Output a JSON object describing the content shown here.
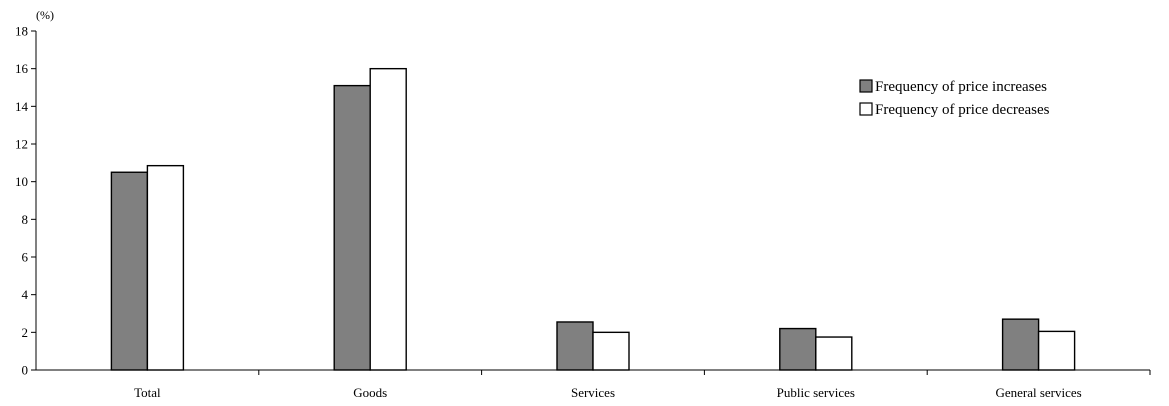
{
  "chart_data": {
    "type": "bar",
    "unit_label": "(%)",
    "categories": [
      "Total",
      "Goods",
      "Services",
      "Public services",
      "General services"
    ],
    "series": [
      {
        "name": "Frequency of price increases",
        "color": "#808080",
        "values": [
          10.5,
          15.1,
          2.55,
          2.2,
          2.7
        ]
      },
      {
        "name": "Frequency of price decreases",
        "color": "#ffffff",
        "values": [
          10.85,
          16.0,
          2.0,
          1.75,
          2.05
        ]
      }
    ],
    "ylim": [
      0,
      18
    ],
    "yticks": [
      0,
      2,
      4,
      6,
      8,
      10,
      12,
      14,
      16,
      18
    ],
    "grid": false,
    "legend_position": "top-right"
  }
}
